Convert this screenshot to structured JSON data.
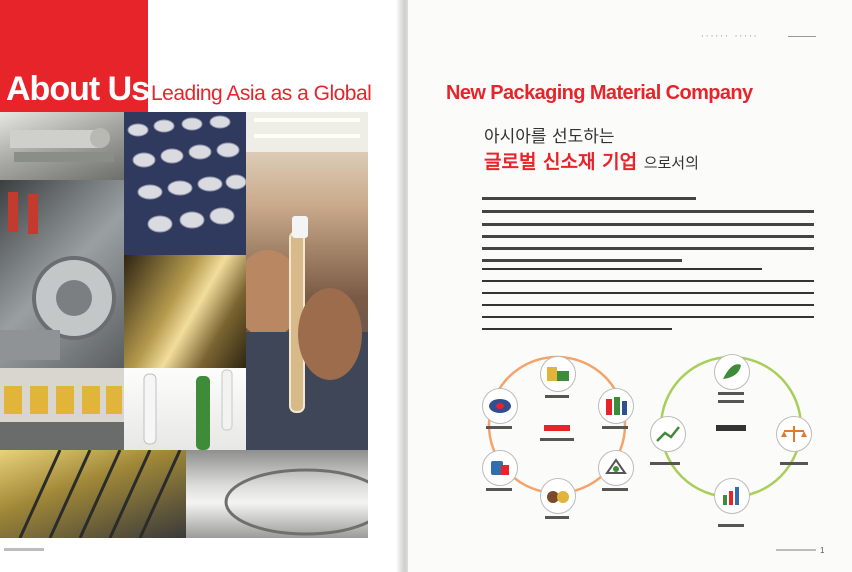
{
  "left_page": {
    "title": "About Us",
    "tagline": "Leading Asia as a Global"
  },
  "right_page": {
    "headline": "New Packaging Material Company",
    "header_label": "······ ·····",
    "korean_line_1": "아시아를 선도하는",
    "korean_line_2": "글로벌 신소재 기업",
    "korean_line_2_suffix": "으로서의",
    "page_number": "1"
  },
  "colors": {
    "accent_red": "#e8242b",
    "ring_orange": "#f4a46b",
    "ring_green": "#a7cf5a"
  },
  "diagram": {
    "left_ring_icons": [
      "packaging-icon",
      "film-roll-icon",
      "chemical-icon",
      "bottle-icon",
      "recycle-icon",
      "material-icon"
    ],
    "right_ring_icons": [
      "leaf-icon",
      "balance-icon",
      "chart-icon",
      "growth-icon"
    ]
  }
}
